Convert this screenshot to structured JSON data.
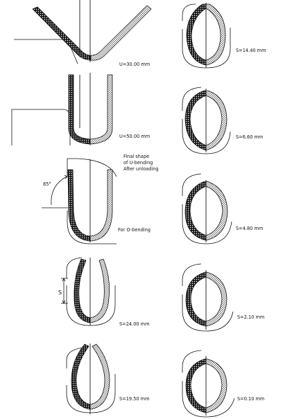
{
  "left_column": {
    "u1": "U=30.00 mm",
    "u2": "U=50.00 mm",
    "final_shape_line1": "Final shape",
    "final_shape_line2": "of U-bending",
    "final_shape_line3": "After unloading",
    "angle": "85°",
    "o_bending": "For O-bending",
    "s_marker": "S",
    "s1": "S=24.00 mm",
    "s2": "S=19.50 mm"
  },
  "right_column": {
    "r1": "S=14.40 mm",
    "r2": "S=6.60 mm",
    "r3": "S=4.80 mm",
    "r4": "S=2.10 mm",
    "r5": "S=0.10 mm"
  }
}
